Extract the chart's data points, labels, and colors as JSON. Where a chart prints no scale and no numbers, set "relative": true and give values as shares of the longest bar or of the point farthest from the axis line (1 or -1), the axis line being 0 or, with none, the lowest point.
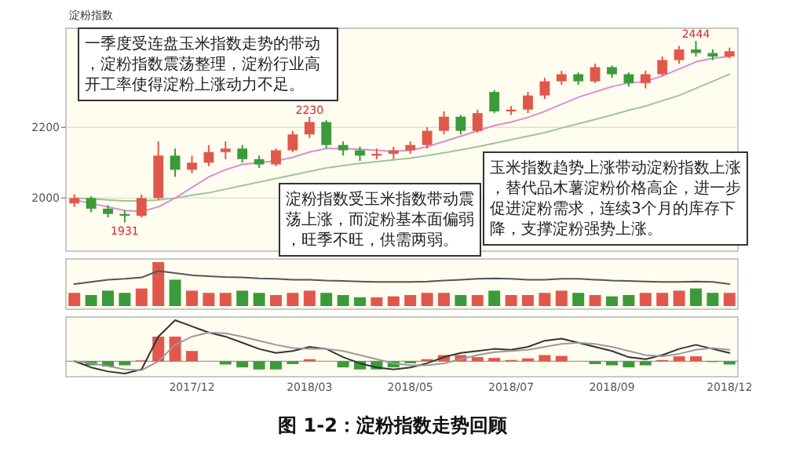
{
  "chart_data": [
    {
      "type": "candlestick",
      "title": "图 1-2：淀粉指数走势回顾",
      "categories": [
        null,
        null,
        null,
        null,
        null,
        null,
        null,
        null,
        null,
        null,
        null,
        null,
        null,
        null,
        null,
        null,
        null,
        null,
        null,
        null,
        null,
        null,
        null,
        null,
        null,
        null,
        null,
        null,
        null,
        null,
        null,
        null,
        null,
        null,
        null,
        null,
        null,
        null,
        null,
        null
      ],
      "ohlc": [
        [
          1985,
          2010,
          1975,
          2000
        ],
        [
          2000,
          2005,
          1960,
          1970
        ],
        [
          1970,
          1980,
          1945,
          1955
        ],
        [
          1955,
          1965,
          1931,
          1950
        ],
        [
          1950,
          2010,
          1945,
          2000
        ],
        [
          2000,
          2160,
          1995,
          2120
        ],
        [
          2120,
          2140,
          2060,
          2080
        ],
        [
          2080,
          2120,
          2070,
          2100
        ],
        [
          2100,
          2150,
          2090,
          2130
        ],
        [
          2130,
          2160,
          2110,
          2140
        ],
        [
          2140,
          2150,
          2100,
          2110
        ],
        [
          2110,
          2120,
          2085,
          2095
        ],
        [
          2095,
          2140,
          2090,
          2135
        ],
        [
          2135,
          2190,
          2130,
          2180
        ],
        [
          2180,
          2230,
          2170,
          2215
        ],
        [
          2215,
          2220,
          2140,
          2150
        ],
        [
          2150,
          2160,
          2120,
          2135
        ],
        [
          2135,
          2145,
          2105,
          2120
        ],
        [
          2120,
          2140,
          2110,
          2125
        ],
        [
          2125,
          2145,
          2110,
          2135
        ],
        [
          2135,
          2160,
          2125,
          2150
        ],
        [
          2150,
          2200,
          2140,
          2190
        ],
        [
          2190,
          2245,
          2180,
          2230
        ],
        [
          2230,
          2235,
          2180,
          2190
        ],
        [
          2190,
          2250,
          2185,
          2240
        ],
        [
          2300,
          2305,
          2240,
          2245
        ],
        [
          2245,
          2260,
          2235,
          2250
        ],
        [
          2250,
          2300,
          2240,
          2290
        ],
        [
          2290,
          2340,
          2280,
          2330
        ],
        [
          2330,
          2360,
          2320,
          2350
        ],
        [
          2350,
          2355,
          2320,
          2330
        ],
        [
          2330,
          2380,
          2325,
          2370
        ],
        [
          2370,
          2375,
          2340,
          2350
        ],
        [
          2350,
          2355,
          2315,
          2325
        ],
        [
          2325,
          2360,
          2310,
          2350
        ],
        [
          2350,
          2400,
          2345,
          2390
        ],
        [
          2390,
          2430,
          2380,
          2420
        ],
        [
          2420,
          2444,
          2400,
          2410
        ],
        [
          2410,
          2420,
          2390,
          2400
        ],
        [
          2400,
          2425,
          2395,
          2415
        ]
      ],
      "colors": [
        "#e2574c",
        "#3b9b3b",
        "#3b9b3b",
        "#3b9b3b",
        "#e2574c",
        "#e2574c",
        "#3b9b3b",
        "#e2574c",
        "#e2574c",
        "#e2574c",
        "#3b9b3b",
        "#3b9b3b",
        "#e2574c",
        "#e2574c",
        "#e2574c",
        "#3b9b3b",
        "#3b9b3b",
        "#3b9b3b",
        "#e2574c",
        "#e2574c",
        "#e2574c",
        "#e2574c",
        "#e2574c",
        "#3b9b3b",
        "#e2574c",
        "#3b9b3b",
        "#e2574c",
        "#e2574c",
        "#e2574c",
        "#e2574c",
        "#3b9b3b",
        "#e2574c",
        "#3b9b3b",
        "#3b9b3b",
        "#e2574c",
        "#e2574c",
        "#e2574c",
        "#3b9b3b",
        "#3b9b3b",
        "#e2574c"
      ],
      "series": [
        {
          "type": "line",
          "color": "#9fc49a",
          "values": [
            2000,
            1998,
            1995,
            1992,
            1992,
            1995,
            2000,
            2008,
            2015,
            2025,
            2035,
            2045,
            2055,
            2065,
            2075,
            2085,
            2092,
            2098,
            2103,
            2108,
            2113,
            2120,
            2128,
            2136,
            2145,
            2155,
            2165,
            2175,
            2185,
            2198,
            2210,
            2222,
            2235,
            2248,
            2260,
            2275,
            2290,
            2310,
            2330,
            2350
          ]
        },
        {
          "type": "line",
          "color": "#d88fd0",
          "values": [
            1995,
            1985,
            1975,
            1965,
            1962,
            1975,
            2000,
            2030,
            2060,
            2080,
            2095,
            2100,
            2105,
            2115,
            2130,
            2140,
            2140,
            2138,
            2135,
            2132,
            2135,
            2145,
            2160,
            2175,
            2190,
            2205,
            2215,
            2228,
            2245,
            2265,
            2285,
            2300,
            2315,
            2325,
            2330,
            2345,
            2365,
            2385,
            2395,
            2400
          ]
        }
      ],
      "ylim": [
        1850,
        2480
      ],
      "yticks": [
        2000,
        2200
      ],
      "grid": "y",
      "annotations": [
        "淀粉指数",
        "一季度受连盘玉米指数走势的带动，淀粉指数震荡整理，淀粉行业高开工率使得淀粉上涨动力不足。",
        "淀粉指数受玉米指数带动震荡上涨，而淀粉基本面偏弱，旺季不旺，供需两弱。",
        "玉米指数趋势上涨带动淀粉指数上涨，替代品木薯淀粉价格高企，进一步促进淀粉需求，连续3个月的库存下降，支撑淀粉强势上涨。",
        {
          "text": "2444",
          "y": 2444
        },
        {
          "text": "1931",
          "y": 1931
        },
        {
          "text": "2230",
          "y": 2230
        }
      ]
    },
    {
      "type": "bar",
      "relative": true,
      "categories": [
        null,
        null,
        null,
        null,
        null,
        null,
        null,
        null,
        null,
        null,
        null,
        null,
        null,
        null,
        null,
        null,
        null,
        null,
        null,
        null,
        null,
        null,
        null,
        null,
        null,
        null,
        null,
        null,
        null,
        null,
        null,
        null,
        null,
        null,
        null,
        null,
        null,
        null,
        null,
        null
      ],
      "series": [
        {
          "type": "bar",
          "colors": [
            "#e2574c",
            "#3b9b3b",
            "#3b9b3b",
            "#3b9b3b",
            "#e2574c",
            "#e2574c",
            "#3b9b3b",
            "#e2574c",
            "#e2574c",
            "#e2574c",
            "#3b9b3b",
            "#3b9b3b",
            "#e2574c",
            "#e2574c",
            "#e2574c",
            "#3b9b3b",
            "#3b9b3b",
            "#3b9b3b",
            "#e2574c",
            "#e2574c",
            "#e2574c",
            "#e2574c",
            "#e2574c",
            "#3b9b3b",
            "#e2574c",
            "#3b9b3b",
            "#e2574c",
            "#e2574c",
            "#e2574c",
            "#e2574c",
            "#3b9b3b",
            "#e2574c",
            "#3b9b3b",
            "#3b9b3b",
            "#e2574c",
            "#e2574c",
            "#e2574c",
            "#3b9b3b",
            "#3b9b3b",
            "#e2574c"
          ],
          "values": [
            0.3,
            0.25,
            0.35,
            0.3,
            0.4,
            1.0,
            0.6,
            0.35,
            0.3,
            0.3,
            0.35,
            0.3,
            0.25,
            0.3,
            0.35,
            0.3,
            0.25,
            0.2,
            0.2,
            0.22,
            0.25,
            0.3,
            0.3,
            0.25,
            0.25,
            0.35,
            0.25,
            0.25,
            0.3,
            0.35,
            0.3,
            0.25,
            0.22,
            0.25,
            0.3,
            0.3,
            0.35,
            0.4,
            0.3,
            0.3
          ]
        },
        {
          "type": "line",
          "color": "#555555",
          "values": [
            0.5,
            0.55,
            0.6,
            0.62,
            0.65,
            0.8,
            0.75,
            0.7,
            0.68,
            0.66,
            0.65,
            0.63,
            0.62,
            0.6,
            0.6,
            0.58,
            0.57,
            0.56,
            0.55,
            0.55,
            0.55,
            0.56,
            0.58,
            0.6,
            0.62,
            0.63,
            0.62,
            0.6,
            0.6,
            0.62,
            0.62,
            0.6,
            0.58,
            0.57,
            0.56,
            0.55,
            0.55,
            0.56,
            0.55,
            0.5
          ]
        }
      ]
    },
    {
      "type": "bar",
      "relative": true,
      "categories": [
        null,
        null,
        null,
        null,
        null,
        null,
        null,
        "2017/12",
        null,
        null,
        null,
        null,
        null,
        null,
        "2018/03",
        null,
        null,
        null,
        null,
        null,
        "2018/05",
        null,
        null,
        null,
        null,
        null,
        "2018/07",
        null,
        null,
        null,
        null,
        null,
        "2018/09",
        null,
        null,
        null,
        null,
        null,
        null,
        "2018/12"
      ],
      "series": [
        {
          "type": "bar",
          "colors": [
            "#e2574c",
            "#3b9b3b",
            "#3b9b3b",
            "#3b9b3b",
            "#e2574c",
            "#e2574c",
            "#e2574c",
            "#e2574c",
            "#e2574c",
            "#3b9b3b",
            "#3b9b3b",
            "#3b9b3b",
            "#3b9b3b",
            "#3b9b3b",
            "#e2574c",
            "#e2574c",
            "#3b9b3b",
            "#3b9b3b",
            "#3b9b3b",
            "#3b9b3b",
            "#3b9b3b",
            "#e2574c",
            "#e2574c",
            "#e2574c",
            "#e2574c",
            "#e2574c",
            "#e2574c",
            "#e2574c",
            "#e2574c",
            "#e2574c",
            "#e2574c",
            "#3b9b3b",
            "#3b9b3b",
            "#3b9b3b",
            "#3b9b3b",
            "#e2574c",
            "#e2574c",
            "#e2574c",
            "#3b9b3b",
            "#3b9b3b"
          ],
          "values": [
            0,
            -0.1,
            -0.13,
            -0.1,
            0.02,
            0.6,
            0.6,
            0.25,
            0,
            -0.08,
            -0.15,
            -0.2,
            -0.2,
            -0.07,
            0.05,
            0,
            -0.15,
            -0.2,
            -0.2,
            -0.15,
            -0.05,
            0.05,
            0.15,
            0.15,
            0.1,
            0.08,
            0.03,
            0.07,
            0.15,
            0.13,
            0,
            -0.07,
            -0.1,
            -0.15,
            -0.1,
            0.03,
            0.12,
            0.12,
            -0.02,
            -0.08
          ]
        },
        {
          "type": "line",
          "color": "#333333",
          "values": [
            0,
            -0.15,
            -0.25,
            -0.3,
            -0.2,
            0.6,
            1.0,
            0.85,
            0.7,
            0.6,
            0.45,
            0.3,
            0.2,
            0.25,
            0.35,
            0.3,
            0.1,
            -0.05,
            -0.15,
            -0.2,
            -0.15,
            -0.05,
            0.1,
            0.2,
            0.25,
            0.3,
            0.28,
            0.35,
            0.5,
            0.55,
            0.45,
            0.35,
            0.25,
            0.1,
            0.05,
            0.15,
            0.3,
            0.4,
            0.3,
            0.2
          ]
        },
        {
          "type": "line",
          "color": "#999999",
          "values": [
            0,
            -0.05,
            -0.12,
            -0.2,
            -0.22,
            0.0,
            0.4,
            0.6,
            0.7,
            0.68,
            0.6,
            0.5,
            0.4,
            0.32,
            0.3,
            0.3,
            0.25,
            0.15,
            0.05,
            -0.05,
            -0.1,
            -0.1,
            -0.05,
            0.05,
            0.15,
            0.22,
            0.25,
            0.28,
            0.35,
            0.42,
            0.45,
            0.42,
            0.35,
            0.25,
            0.15,
            0.12,
            0.18,
            0.28,
            0.32,
            0.28
          ]
        }
      ]
    }
  ]
}
